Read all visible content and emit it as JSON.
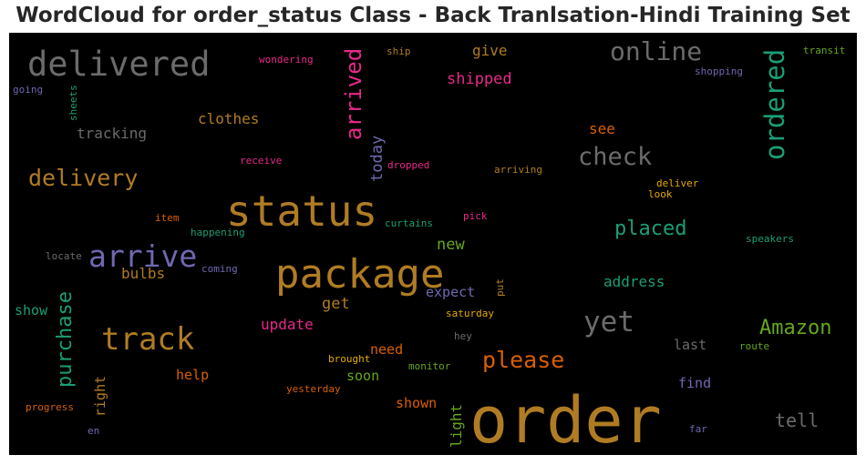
{
  "chart_data": {
    "type": "wordcloud",
    "title": "WordCloud for order_status Class - Back Tranlsation-Hindi Training Set",
    "background": "#000000",
    "words": [
      {
        "text": "order",
        "color": "#b07c23"
      },
      {
        "text": "package",
        "color": "#b07c23"
      },
      {
        "text": "status",
        "color": "#b07c23"
      },
      {
        "text": "delivered",
        "color": "#6b6b6b"
      },
      {
        "text": "track",
        "color": "#b07c23"
      },
      {
        "text": "arrive",
        "color": "#6f68b0"
      },
      {
        "text": "yet",
        "color": "#6b6b6b"
      },
      {
        "text": "online",
        "color": "#6b6b6b"
      },
      {
        "text": "ordered",
        "color": "#1b9e77"
      },
      {
        "text": "check",
        "color": "#6b6b6b"
      },
      {
        "text": "arrived",
        "color": "#e7298a"
      },
      {
        "text": "delivery",
        "color": "#b07c23"
      },
      {
        "text": "please",
        "color": "#d95f02"
      },
      {
        "text": "purchase",
        "color": "#1b9e77"
      },
      {
        "text": "Amazon",
        "color": "#66a61e"
      },
      {
        "text": "placed",
        "color": "#1b9e77"
      },
      {
        "text": "tell",
        "color": "#6b6b6b"
      },
      {
        "text": "shipped",
        "color": "#e7298a"
      },
      {
        "text": "today",
        "color": "#6f68b0"
      },
      {
        "text": "tracking",
        "color": "#6b6b6b"
      },
      {
        "text": "clothes",
        "color": "#b07c23"
      },
      {
        "text": "new",
        "color": "#66a61e"
      },
      {
        "text": "update",
        "color": "#e7298a"
      },
      {
        "text": "get",
        "color": "#b07c23"
      },
      {
        "text": "expect",
        "color": "#6f68b0"
      },
      {
        "text": "address",
        "color": "#1b9e77"
      },
      {
        "text": "give",
        "color": "#b07c23"
      },
      {
        "text": "see",
        "color": "#d95f02"
      },
      {
        "text": "bulbs",
        "color": "#b07c23"
      },
      {
        "text": "show",
        "color": "#1b9e77"
      },
      {
        "text": "right",
        "color": "#b07c23"
      },
      {
        "text": "help",
        "color": "#d95f02"
      },
      {
        "text": "need",
        "color": "#d95f02"
      },
      {
        "text": "soon",
        "color": "#66a61e"
      },
      {
        "text": "shown",
        "color": "#d95f02"
      },
      {
        "text": "last",
        "color": "#6b6b6b"
      },
      {
        "text": "find",
        "color": "#6f68b0"
      },
      {
        "text": "light",
        "color": "#66a61e"
      },
      {
        "text": "wondering",
        "color": "#e7298a"
      },
      {
        "text": "ship",
        "color": "#b07c23"
      },
      {
        "text": "shopping",
        "color": "#6f68b0"
      },
      {
        "text": "transit",
        "color": "#66a61e"
      },
      {
        "text": "going",
        "color": "#6f68b0"
      },
      {
        "text": "sheets",
        "color": "#1b9e77"
      },
      {
        "text": "receive",
        "color": "#e7298a"
      },
      {
        "text": "dropped",
        "color": "#e7298a"
      },
      {
        "text": "arriving",
        "color": "#b07c23"
      },
      {
        "text": "deliver",
        "color": "#e6ab02"
      },
      {
        "text": "look",
        "color": "#e6ab02"
      },
      {
        "text": "item",
        "color": "#d95f02"
      },
      {
        "text": "happening",
        "color": "#1b9e77"
      },
      {
        "text": "curtains",
        "color": "#1b9e77"
      },
      {
        "text": "pick",
        "color": "#e7298a"
      },
      {
        "text": "speakers",
        "color": "#1b9e77"
      },
      {
        "text": "locate",
        "color": "#6b6b6b"
      },
      {
        "text": "coming",
        "color": "#6f68b0"
      },
      {
        "text": "put",
        "color": "#b07c23"
      },
      {
        "text": "saturday",
        "color": "#e6ab02"
      },
      {
        "text": "hey",
        "color": "#6b6b6b"
      },
      {
        "text": "route",
        "color": "#66a61e"
      },
      {
        "text": "brought",
        "color": "#e6ab02"
      },
      {
        "text": "monitor",
        "color": "#66a61e"
      },
      {
        "text": "yesterday",
        "color": "#d95f02"
      },
      {
        "text": "progress",
        "color": "#d95f02"
      },
      {
        "text": "en",
        "color": "#6f68b0"
      },
      {
        "text": "far",
        "color": "#6f68b0"
      }
    ]
  }
}
